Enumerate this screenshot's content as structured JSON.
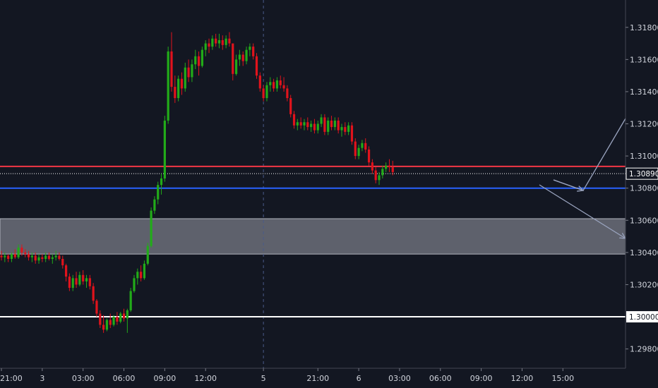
{
  "chart_data": {
    "type": "candlestick",
    "y_axis": {
      "ylim": [
        1.2968,
        1.3197
      ],
      "tick_values": [
        1.298,
        1.302,
        1.304,
        1.306,
        1.308,
        1.31,
        1.312,
        1.314,
        1.316,
        1.318
      ],
      "tick_labels": [
        "1.29800",
        "1.30200",
        "1.30400",
        "1.30600",
        "1.30800",
        "1.31000",
        "1.31200",
        "1.31400",
        "1.31600",
        "1.31800"
      ]
    },
    "x_axis": {
      "tick_labels": [
        "21:00",
        "3",
        "03:00",
        "06:00",
        "09:00",
        "12:00",
        "5",
        "21:00",
        "6",
        "03:00",
        "06:00",
        "09:00",
        "12:00",
        "15:00"
      ],
      "tick_candle_index": [
        0,
        12,
        24,
        36,
        48,
        60,
        77,
        93,
        105,
        117,
        129,
        141,
        153,
        165
      ]
    },
    "candles_ohlc": [
      [
        1.3038,
        1.3041,
        1.3035,
        1.3037
      ],
      [
        1.3037,
        1.304,
        1.3034,
        1.3038
      ],
      [
        1.3038,
        1.3039,
        1.3034,
        1.3036
      ],
      [
        1.3036,
        1.304,
        1.3034,
        1.3039
      ],
      [
        1.3039,
        1.3042,
        1.3036,
        1.3037
      ],
      [
        1.3037,
        1.3045,
        1.3036,
        1.3043
      ],
      [
        1.3043,
        1.3045,
        1.3038,
        1.304
      ],
      [
        1.304,
        1.3042,
        1.3037,
        1.3039
      ],
      [
        1.3039,
        1.3041,
        1.3035,
        1.3037
      ],
      [
        1.3037,
        1.304,
        1.3034,
        1.3038
      ],
      [
        1.3038,
        1.304,
        1.3033,
        1.3035
      ],
      [
        1.3035,
        1.3039,
        1.3033,
        1.3037
      ],
      [
        1.3037,
        1.3039,
        1.3034,
        1.3036
      ],
      [
        1.3036,
        1.304,
        1.3034,
        1.3038
      ],
      [
        1.3038,
        1.304,
        1.3035,
        1.3036
      ],
      [
        1.3036,
        1.3039,
        1.3033,
        1.3037
      ],
      [
        1.3037,
        1.3041,
        1.3035,
        1.3038
      ],
      [
        1.3038,
        1.304,
        1.3035,
        1.3036
      ],
      [
        1.3036,
        1.3038,
        1.303,
        1.3032
      ],
      [
        1.3032,
        1.3033,
        1.3022,
        1.3025
      ],
      [
        1.3025,
        1.3027,
        1.3016,
        1.3018
      ],
      [
        1.3018,
        1.3026,
        1.3016,
        1.3024
      ],
      [
        1.3024,
        1.3028,
        1.3018,
        1.302
      ],
      [
        1.302,
        1.3028,
        1.3019,
        1.3026
      ],
      [
        1.3026,
        1.3029,
        1.302,
        1.3022
      ],
      [
        1.3022,
        1.3026,
        1.3018,
        1.3024
      ],
      [
        1.3024,
        1.3026,
        1.3017,
        1.3019
      ],
      [
        1.3019,
        1.3021,
        1.3008,
        1.301
      ],
      [
        1.301,
        1.3011,
        1.3,
        1.3002
      ],
      [
        1.3002,
        1.3004,
        1.2993,
        1.2995
      ],
      [
        1.2995,
        1.3001,
        1.299,
        1.2992
      ],
      [
        1.2992,
        1.2999,
        1.2991,
        1.2998
      ],
      [
        1.2998,
        1.3002,
        1.2993,
        1.2995
      ],
      [
        1.2995,
        1.3001,
        1.2994,
        1.3
      ],
      [
        1.3,
        1.3003,
        1.2995,
        1.2997
      ],
      [
        1.2997,
        1.3003,
        1.2996,
        1.3002
      ],
      [
        1.3002,
        1.3005,
        1.2997,
        1.2999
      ],
      [
        1.2999,
        1.3005,
        1.299,
        1.3004
      ],
      [
        1.3004,
        1.3018,
        1.3003,
        1.3016
      ],
      [
        1.3016,
        1.3026,
        1.3015,
        1.3024
      ],
      [
        1.3024,
        1.303,
        1.302,
        1.3028
      ],
      [
        1.3028,
        1.3032,
        1.3022,
        1.3024
      ],
      [
        1.3024,
        1.3035,
        1.3023,
        1.3033
      ],
      [
        1.3033,
        1.3046,
        1.3032,
        1.3044
      ],
      [
        1.3044,
        1.3068,
        1.3043,
        1.3066
      ],
      [
        1.3066,
        1.3075,
        1.3064,
        1.3073
      ],
      [
        1.3073,
        1.3084,
        1.307,
        1.3082
      ],
      [
        1.3082,
        1.3089,
        1.3076,
        1.3086
      ],
      [
        1.3086,
        1.3125,
        1.3084,
        1.3122
      ],
      [
        1.3122,
        1.3168,
        1.312,
        1.3165
      ],
      [
        1.3165,
        1.3177,
        1.314,
        1.3143
      ],
      [
        1.3143,
        1.315,
        1.3133,
        1.3136
      ],
      [
        1.3136,
        1.315,
        1.3134,
        1.3148
      ],
      [
        1.3148,
        1.3152,
        1.3138,
        1.3142
      ],
      [
        1.3142,
        1.3158,
        1.314,
        1.3155
      ],
      [
        1.3155,
        1.316,
        1.3146,
        1.3149
      ],
      [
        1.3149,
        1.316,
        1.3146,
        1.3157
      ],
      [
        1.3157,
        1.3166,
        1.3154,
        1.3162
      ],
      [
        1.3162,
        1.3165,
        1.315,
        1.3156
      ],
      [
        1.3156,
        1.3168,
        1.3155,
        1.3166
      ],
      [
        1.3166,
        1.3172,
        1.3162,
        1.317
      ],
      [
        1.317,
        1.3173,
        1.3164,
        1.3168
      ],
      [
        1.3168,
        1.3175,
        1.3166,
        1.3173
      ],
      [
        1.3173,
        1.3176,
        1.3168,
        1.317
      ],
      [
        1.317,
        1.3176,
        1.3167,
        1.3172
      ],
      [
        1.3172,
        1.3175,
        1.3166,
        1.3169
      ],
      [
        1.3169,
        1.3175,
        1.3167,
        1.3173
      ],
      [
        1.3173,
        1.3177,
        1.3168,
        1.317
      ],
      [
        1.317,
        1.3151,
        1.3147,
        1.3151
      ],
      [
        1.3151,
        1.3163,
        1.315,
        1.316
      ],
      [
        1.316,
        1.3166,
        1.3156,
        1.3163
      ],
      [
        1.3163,
        1.3165,
        1.3156,
        1.3159
      ],
      [
        1.3159,
        1.3168,
        1.3157,
        1.3166
      ],
      [
        1.3166,
        1.317,
        1.3162,
        1.3168
      ],
      [
        1.3168,
        1.317,
        1.316,
        1.3162
      ],
      [
        1.3162,
        1.3164,
        1.3148,
        1.315
      ],
      [
        1.315,
        1.3152,
        1.314,
        1.3142
      ],
      [
        1.3142,
        1.3144,
        1.3134,
        1.3136
      ],
      [
        1.3136,
        1.3146,
        1.3134,
        1.3144
      ],
      [
        1.3144,
        1.3149,
        1.314,
        1.3146
      ],
      [
        1.3146,
        1.3148,
        1.314,
        1.3142
      ],
      [
        1.3142,
        1.3149,
        1.314,
        1.3147
      ],
      [
        1.3147,
        1.315,
        1.3142,
        1.3144
      ],
      [
        1.3144,
        1.3149,
        1.314,
        1.3142
      ],
      [
        1.3142,
        1.3144,
        1.3134,
        1.3136
      ],
      [
        1.3136,
        1.3138,
        1.3124,
        1.3126
      ],
      [
        1.3126,
        1.3128,
        1.3117,
        1.3119
      ],
      [
        1.3119,
        1.3123,
        1.3116,
        1.3121
      ],
      [
        1.3121,
        1.3124,
        1.3117,
        1.3119
      ],
      [
        1.3119,
        1.3123,
        1.3116,
        1.3121
      ],
      [
        1.3121,
        1.3124,
        1.3116,
        1.3118
      ],
      [
        1.3118,
        1.3122,
        1.3115,
        1.312
      ],
      [
        1.312,
        1.3123,
        1.3114,
        1.3116
      ],
      [
        1.3116,
        1.3122,
        1.3114,
        1.312
      ],
      [
        1.312,
        1.3126,
        1.3118,
        1.3124
      ],
      [
        1.3124,
        1.3126,
        1.3113,
        1.3115
      ],
      [
        1.3115,
        1.3124,
        1.3113,
        1.3122
      ],
      [
        1.3122,
        1.3125,
        1.3116,
        1.3118
      ],
      [
        1.3118,
        1.3124,
        1.3116,
        1.3122
      ],
      [
        1.3122,
        1.3124,
        1.3114,
        1.3116
      ],
      [
        1.3116,
        1.312,
        1.3112,
        1.3118
      ],
      [
        1.3118,
        1.3121,
        1.3113,
        1.3115
      ],
      [
        1.3115,
        1.3121,
        1.3113,
        1.3119
      ],
      [
        1.3119,
        1.3121,
        1.3107,
        1.3109
      ],
      [
        1.3109,
        1.3111,
        1.3098,
        1.31
      ],
      [
        1.31,
        1.3107,
        1.3098,
        1.3105
      ],
      [
        1.3105,
        1.311,
        1.3103,
        1.3108
      ],
      [
        1.3108,
        1.3111,
        1.3102,
        1.3104
      ],
      [
        1.3104,
        1.3106,
        1.3094,
        1.3096
      ],
      [
        1.3096,
        1.3098,
        1.3089,
        1.3091
      ],
      [
        1.3091,
        1.3093,
        1.3083,
        1.3085
      ],
      [
        1.3085,
        1.309,
        1.3082,
        1.3088
      ],
      [
        1.3088,
        1.3094,
        1.3086,
        1.3092
      ],
      [
        1.3092,
        1.3096,
        1.309,
        1.3094
      ],
      [
        1.3094,
        1.3098,
        1.309,
        1.3093
      ],
      [
        1.3093,
        1.3097,
        1.3088,
        1.309
      ]
    ],
    "series_name": "",
    "horizontal_lines": [
      {
        "name": "resistance",
        "value": 1.30935,
        "color": "#f23645"
      },
      {
        "name": "current-price",
        "value": 1.3089,
        "color": "#ffffff",
        "style": "dotted"
      },
      {
        "name": "support",
        "value": 1.308,
        "color": "#2962ff"
      },
      {
        "name": "round-number",
        "value": 1.3,
        "color": "#ffffff"
      }
    ],
    "zone": {
      "from": 1.3039,
      "to": 1.3061,
      "color": "#787b86"
    },
    "current_price_label": "1.30890",
    "round_number_label": "1.30000",
    "colors": {
      "up": "#22ab19",
      "down": "#e0131c",
      "background": "#131722",
      "text": "#d1d4dc",
      "arrows": "#9aa4bf"
    },
    "grid": false,
    "session_separator_at_tick": "5"
  }
}
